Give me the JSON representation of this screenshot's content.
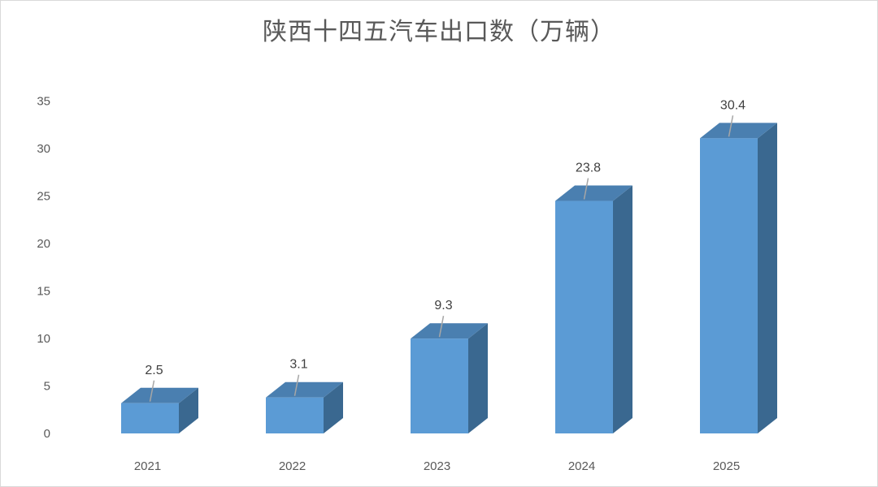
{
  "chart_data": {
    "type": "bar",
    "title": "陕西十四五汽车出口数（万辆）",
    "categories": [
      "2021",
      "2022",
      "2023",
      "2024",
      "2025"
    ],
    "values": [
      2.5,
      3.1,
      9.3,
      23.8,
      30.4
    ],
    "data_labels": [
      "2.5",
      "3.1",
      "9.3",
      "23.8",
      "30.4"
    ],
    "ylim": [
      0,
      35
    ],
    "yticks": [
      0,
      5,
      10,
      15,
      20,
      25,
      30,
      35
    ],
    "ytick_labels": [
      "0",
      "5",
      "10",
      "15",
      "20",
      "25",
      "30",
      "35"
    ],
    "grid": false,
    "legend": "none",
    "style": "3d-column",
    "colors": {
      "front": "#5b9bd5",
      "side": "#3a6890",
      "top": "#4a7fb0",
      "leader": "#a6a6a6"
    }
  }
}
